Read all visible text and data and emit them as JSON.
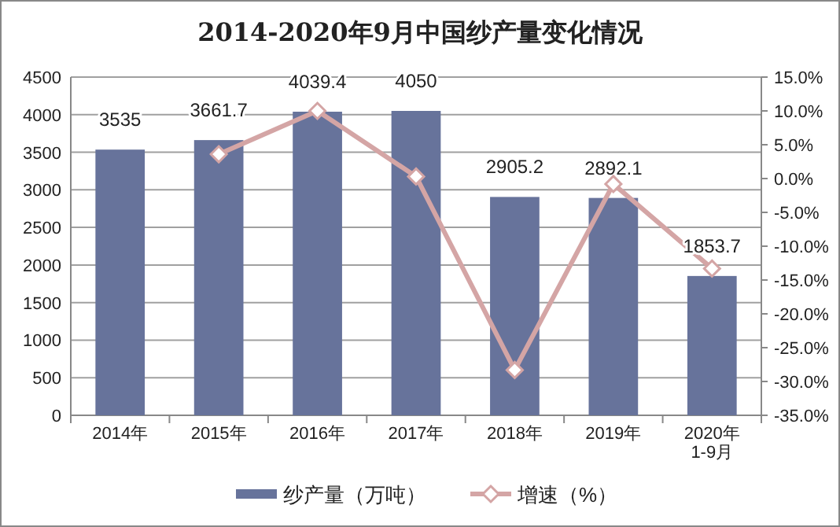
{
  "chart_data": {
    "type": "bar",
    "title": "2014-2020年9月中国纱产量变化情况",
    "categories": [
      "2014年",
      "2015年",
      "2016年",
      "2017年",
      "2018年",
      "2019年",
      "2020年\n1-9月"
    ],
    "series": [
      {
        "name": "纱产量（万吨）",
        "color": "#67739b",
        "values": [
          3535,
          3661.7,
          4039.4,
          4050,
          2905.2,
          2892.1,
          1853.7
        ],
        "value_labels": [
          "3535",
          "3661.7",
          "4039.4",
          "4050",
          "2905.2",
          "2892.1",
          "1853.7"
        ]
      },
      {
        "name": "增速（%）",
        "type": "line",
        "axis": "y2",
        "color": "#d4a5a5",
        "marker": "diamond",
        "values": [
          null,
          3.6,
          10.0,
          0.3,
          -28.3,
          -0.8,
          -13.3
        ]
      }
    ],
    "ylim": [
      0,
      4500
    ],
    "yticks": [
      0,
      500,
      1000,
      1500,
      2000,
      2500,
      3000,
      3500,
      4000,
      4500
    ],
    "y2lim": [
      -35,
      15
    ],
    "y2ticks": [
      {
        "value": -35,
        "label": "-35.0%"
      },
      {
        "value": -30,
        "label": "-30.0%"
      },
      {
        "value": -25,
        "label": "-25.0%"
      },
      {
        "value": -20,
        "label": "-20.0%"
      },
      {
        "value": -15,
        "label": "-15.0%"
      },
      {
        "value": -10,
        "label": "-10.0%"
      },
      {
        "value": -5,
        "label": "-5.0%"
      },
      {
        "value": 0,
        "label": "0.0%"
      },
      {
        "value": 5,
        "label": "5.0%"
      },
      {
        "value": 10,
        "label": "10.0%"
      },
      {
        "value": 15,
        "label": "15.0%"
      }
    ],
    "grid": "y",
    "legend": "bottom"
  }
}
